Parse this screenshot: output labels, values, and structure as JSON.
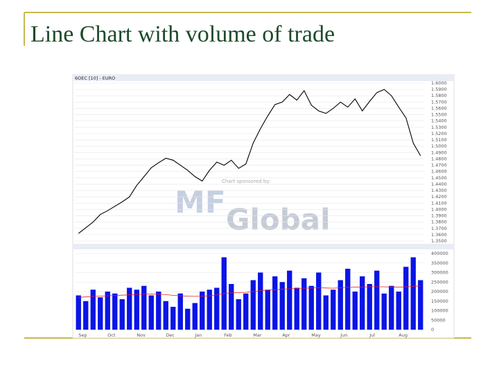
{
  "title": "Line Chart with volume of trade",
  "sponsor": {
    "caption": "Chart sponsored by:",
    "logo_left": "MF",
    "logo_right": "Global"
  },
  "chart_data": [
    {
      "type": "line",
      "header": "6OEC [10] - EURO",
      "color": "#000000",
      "grid": true,
      "values": [
        1.362,
        1.371,
        1.38,
        1.392,
        1.398,
        1.405,
        1.412,
        1.42,
        1.438,
        1.452,
        1.466,
        1.474,
        1.481,
        1.478,
        1.47,
        1.462,
        1.452,
        1.445,
        1.462,
        1.475,
        1.47,
        1.478,
        1.465,
        1.472,
        1.505,
        1.528,
        1.548,
        1.566,
        1.57,
        1.582,
        1.573,
        1.588,
        1.565,
        1.556,
        1.552,
        1.56,
        1.57,
        1.562,
        1.575,
        1.556,
        1.571,
        1.585,
        1.59,
        1.58,
        1.562,
        1.545,
        1.505,
        1.485
      ],
      "ylim": [
        1.35,
        1.6
      ],
      "yticks": [
        {
          "value": 1.35,
          "label": "1.3500"
        },
        {
          "value": 1.36,
          "label": "1.3600"
        },
        {
          "value": 1.37,
          "label": "1.3700"
        },
        {
          "value": 1.38,
          "label": "1.3800"
        },
        {
          "value": 1.39,
          "label": "1.3900"
        },
        {
          "value": 1.4,
          "label": "1.4000"
        },
        {
          "value": 1.41,
          "label": "1.4100"
        },
        {
          "value": 1.42,
          "label": "1.4200"
        },
        {
          "value": 1.43,
          "label": "1.4300"
        },
        {
          "value": 1.44,
          "label": "1.4400"
        },
        {
          "value": 1.45,
          "label": "1.4500"
        },
        {
          "value": 1.46,
          "label": "1.4600"
        },
        {
          "value": 1.47,
          "label": "1.4700"
        },
        {
          "value": 1.48,
          "label": "1.4800"
        },
        {
          "value": 1.49,
          "label": "1.4900"
        },
        {
          "value": 1.5,
          "label": "1.5000"
        },
        {
          "value": 1.51,
          "label": "1.5100"
        },
        {
          "value": 1.52,
          "label": "1.5200"
        },
        {
          "value": 1.53,
          "label": "1.5300"
        },
        {
          "value": 1.54,
          "label": "1.5400"
        },
        {
          "value": 1.55,
          "label": "1.5500"
        },
        {
          "value": 1.56,
          "label": "1.5600"
        },
        {
          "value": 1.57,
          "label": "1.5700"
        },
        {
          "value": 1.58,
          "label": "1.5800"
        },
        {
          "value": 1.59,
          "label": "1.5900"
        },
        {
          "value": 1.6,
          "label": "1.6000"
        }
      ]
    },
    {
      "type": "bar",
      "grid": true,
      "categories": [
        "Sep",
        null,
        null,
        null,
        "Oct",
        null,
        null,
        null,
        "Nov",
        null,
        null,
        null,
        "Dec",
        null,
        null,
        null,
        "Jan",
        null,
        null,
        null,
        "Feb",
        null,
        null,
        null,
        "Mar",
        null,
        null,
        null,
        "Apr",
        null,
        null,
        null,
        "May",
        null,
        null,
        null,
        "Jun",
        null,
        null,
        null,
        "Jul",
        null,
        null,
        null,
        "Aug",
        null,
        null,
        null
      ],
      "series": [
        {
          "color": "#0a14e6",
          "values": [
            180000,
            150000,
            210000,
            170000,
            200000,
            190000,
            160000,
            220000,
            210000,
            230000,
            180000,
            200000,
            150000,
            120000,
            190000,
            110000,
            140000,
            200000,
            210000,
            220000,
            380000,
            240000,
            160000,
            190000,
            260000,
            300000,
            210000,
            280000,
            250000,
            310000,
            220000,
            270000,
            230000,
            300000,
            180000,
            210000,
            260000,
            320000,
            200000,
            280000,
            240000,
            310000,
            190000,
            230000,
            200000,
            330000,
            380000,
            260000
          ]
        },
        {
          "type": "line",
          "color": "#e02020",
          "values": [
            170000,
            172000,
            175000,
            176000,
            178000,
            180000,
            181000,
            183000,
            185000,
            186000,
            187000,
            186000,
            184000,
            180000,
            178000,
            176000,
            175000,
            176000,
            178000,
            182000,
            190000,
            194000,
            195000,
            196000,
            200000,
            205000,
            208000,
            210000,
            212000,
            215000,
            216000,
            218000,
            219000,
            220000,
            219000,
            218000,
            220000,
            222000,
            223000,
            224000,
            225000,
            226000,
            225000,
            224000,
            223000,
            225000,
            228000,
            230000
          ]
        }
      ],
      "ylim": [
        0,
        400000
      ],
      "yticks": [
        0,
        50000,
        100000,
        150000,
        200000,
        250000,
        300000,
        350000,
        400000
      ]
    }
  ]
}
